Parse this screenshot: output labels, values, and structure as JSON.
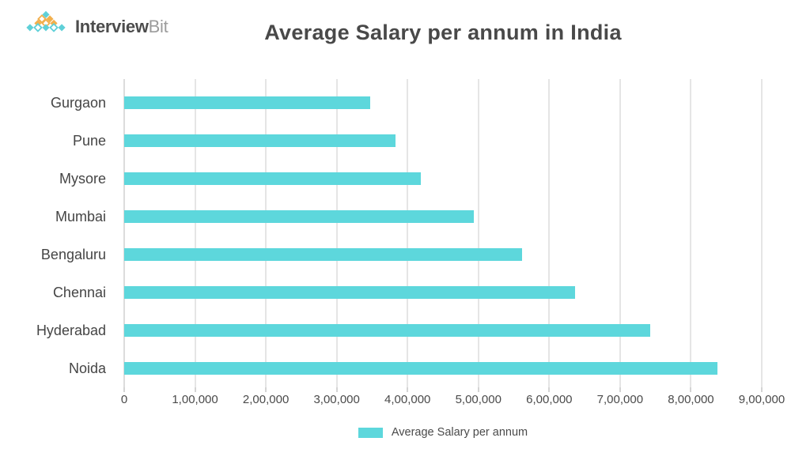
{
  "header": {
    "logo": {
      "text_primary": "Interview",
      "text_secondary": "Bit"
    },
    "title": "Average Salary per annum in India"
  },
  "chart_data": {
    "type": "bar",
    "orientation": "horizontal",
    "title": "Average Salary per annum in India",
    "categories": [
      "Gurgaon",
      "Pune",
      "Mysore",
      "Mumbai",
      "Bengaluru",
      "Chennai",
      "Hyderabad",
      "Noida"
    ],
    "series": [
      {
        "name": "Average Salary per annum",
        "values": [
          347000,
          383000,
          419000,
          493000,
          562000,
          637000,
          742000,
          838000
        ]
      }
    ],
    "x_ticks": [
      {
        "value": 0,
        "label": "0"
      },
      {
        "value": 100000,
        "label": "1,00,000"
      },
      {
        "value": 200000,
        "label": "2,00,000"
      },
      {
        "value": 300000,
        "label": "3,00,000"
      },
      {
        "value": 400000,
        "label": "4,00,000"
      },
      {
        "value": 500000,
        "label": "5,00,000"
      },
      {
        "value": 600000,
        "label": "6,00,000"
      },
      {
        "value": 700000,
        "label": "7,00,000"
      },
      {
        "value": 800000,
        "label": "8,00,000"
      },
      {
        "value": 900000,
        "label": "9,00,000"
      }
    ],
    "xlim": [
      0,
      900000
    ],
    "xlabel": "",
    "ylabel": "",
    "grid": true,
    "legend": {
      "position": "bottom",
      "label": "Average Salary per annum"
    }
  },
  "colors": {
    "bar": "#5dd7dc",
    "grid": "#e5e5e5",
    "title_text": "#494949",
    "axis_text": "#4a4a4a",
    "logo_teal": "#5fd0d8",
    "logo_orange": "#f2b04e"
  }
}
